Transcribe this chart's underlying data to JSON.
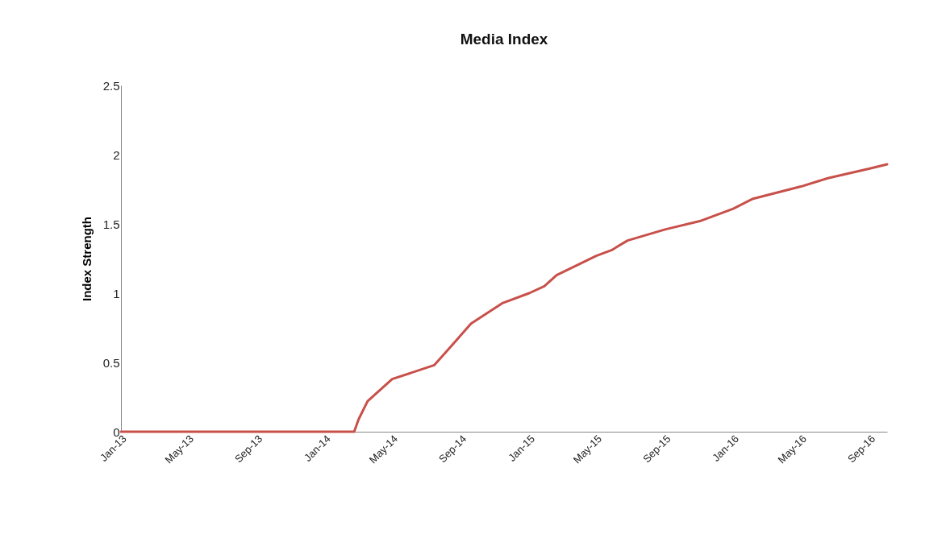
{
  "chart_data": {
    "type": "line",
    "title": "Media Index",
    "ylabel": "Index Strength",
    "x": [
      "2013-01-01",
      "2014-02-22",
      "2014-03-02",
      "2014-03-18",
      "2014-05-01",
      "2014-07-15",
      "2014-08-13",
      "2014-09-19",
      "2014-11-15",
      "2015-01-01",
      "2015-01-28",
      "2015-02-19",
      "2015-05-01",
      "2015-05-28",
      "2015-06-26",
      "2015-09-01",
      "2015-11-02",
      "2016-01-01",
      "2016-02-04",
      "2016-05-01",
      "2016-06-18",
      "2016-09-01",
      "2016-10-02"
    ],
    "series": [
      {
        "color": "#c8504a",
        "values": [
          0,
          0,
          0.09,
          0.22,
          0.38,
          0.48,
          0.61,
          0.78,
          0.93,
          1.0,
          1.05,
          1.13,
          1.27,
          1.31,
          1.38,
          1.46,
          1.52,
          1.61,
          1.68,
          1.77,
          1.83,
          1.9,
          1.93
        ]
      }
    ],
    "xlim": [
      "2013-01-01",
      "2016-10-02"
    ],
    "xticks": [
      {
        "value": "2013-01",
        "label": "Jan-13"
      },
      {
        "value": "2013-05",
        "label": "May-13"
      },
      {
        "value": "2013-09",
        "label": "Sep-13"
      },
      {
        "value": "2014-01",
        "label": "Jan-14"
      },
      {
        "value": "2014-05",
        "label": "May-14"
      },
      {
        "value": "2014-09",
        "label": "Sep-14"
      },
      {
        "value": "2015-01",
        "label": "Jan-15"
      },
      {
        "value": "2015-05",
        "label": "May-15"
      },
      {
        "value": "2015-09",
        "label": "Sep-15"
      },
      {
        "value": "2016-01",
        "label": "Jan-16"
      },
      {
        "value": "2016-05",
        "label": "May-16"
      },
      {
        "value": "2016-09",
        "label": "Sep-16"
      }
    ],
    "ylim": [
      0,
      2.5
    ],
    "yticks": [
      0,
      0.5,
      1,
      1.5,
      2,
      2.5
    ],
    "grid": false
  }
}
